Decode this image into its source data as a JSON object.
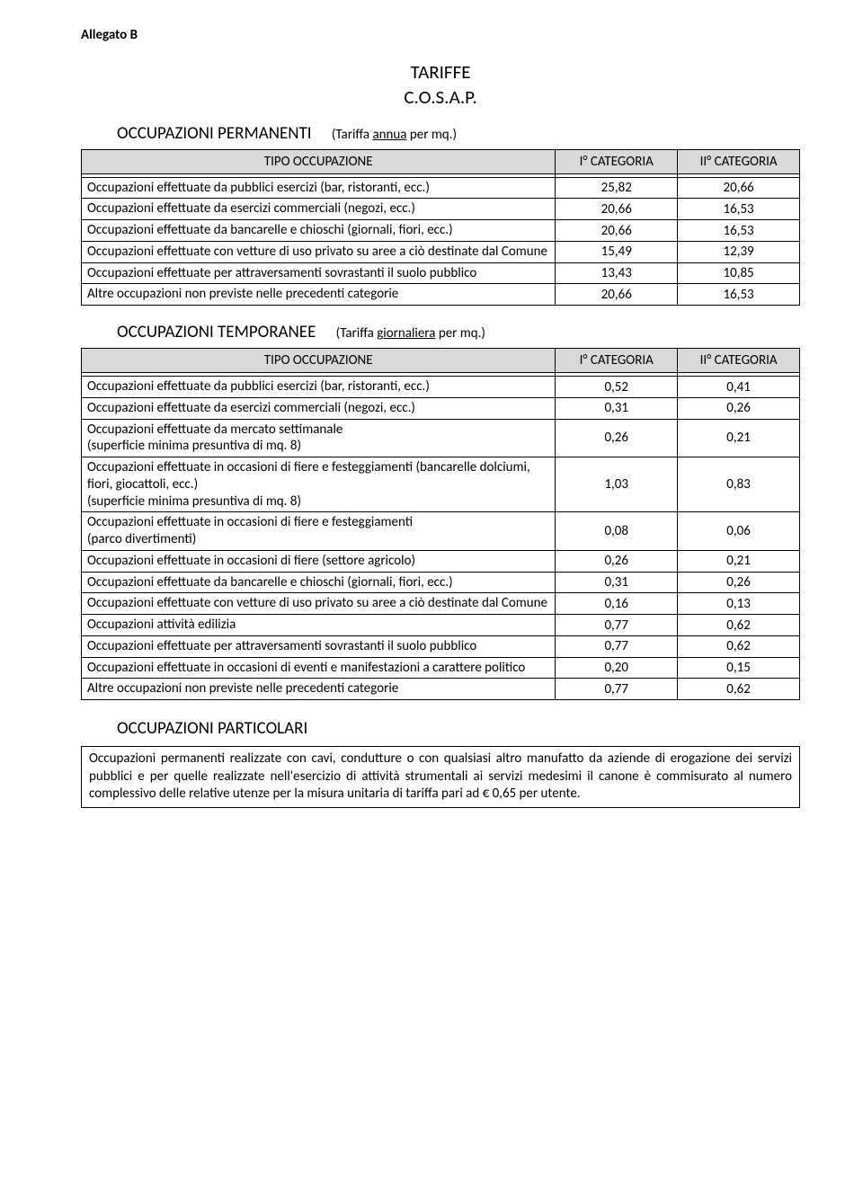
{
  "allegato": "Allegato B",
  "title1": "TARIFFE",
  "title2": "C.O.S.A.P.",
  "section1": {
    "label": "OCCUPAZIONI PERMANENTI",
    "tariffa_prefix": "(Tariffa ",
    "tariffa_underline": "annua",
    "tariffa_suffix": " per mq.)",
    "col1": "TIPO OCCUPAZIONE",
    "col2": "I° CATEGORIA",
    "col3": "II° CATEGORIA",
    "rows": [
      {
        "label": "Occupazioni effettuate da pubblici esercizi (bar, ristoranti, ecc.)",
        "c1": "25,82",
        "c2": "20,66"
      },
      {
        "label": "Occupazioni effettuate da esercizi commerciali (negozi, ecc.)",
        "c1": "20,66",
        "c2": "16,53"
      },
      {
        "label": "Occupazioni effettuate da bancarelle e chioschi (giornali, fiori, ecc.)",
        "c1": "20,66",
        "c2": "16,53"
      },
      {
        "label": "Occupazioni effettuate con vetture di uso privato su aree a ciò destinate dal Comune",
        "c1": "15,49",
        "c2": "12,39"
      },
      {
        "label": "Occupazioni effettuate per attraversamenti sovrastanti il suolo pubblico",
        "c1": "13,43",
        "c2": "10,85"
      },
      {
        "label": "Altre occupazioni non previste nelle precedenti categorie",
        "c1": "20,66",
        "c2": "16,53"
      }
    ]
  },
  "section2": {
    "label": "OCCUPAZIONI TEMPORANEE",
    "tariffa_prefix": "(Tariffa ",
    "tariffa_underline": "giornaliera",
    "tariffa_suffix": " per mq.)",
    "col1": "TIPO OCCUPAZIONE",
    "col2": "I° CATEGORIA",
    "col3": "II° CATEGORIA",
    "rows": [
      {
        "label": "Occupazioni effettuate da pubblici esercizi (bar, ristoranti, ecc.)",
        "c1": "0,52",
        "c2": "0,41"
      },
      {
        "label": "Occupazioni effettuate da esercizi commerciali (negozi, ecc.)",
        "c1": "0,31",
        "c2": "0,26"
      },
      {
        "label": "Occupazioni effettuate da mercato settimanale\n(superficie minima presuntiva di mq. 8)",
        "c1": "0,26",
        "c2": "0,21"
      },
      {
        "label": "Occupazioni effettuate in occasioni di fiere e festeggiamenti (bancarelle dolciumi, fiori, giocattoli, ecc.)\n(superficie minima presuntiva di mq. 8)",
        "c1": "1,03",
        "c2": "0,83"
      },
      {
        "label": "Occupazioni effettuate in occasioni di fiere e festeggiamenti\n(parco divertimenti)",
        "c1": "0,08",
        "c2": "0,06"
      },
      {
        "label": "Occupazioni effettuate in occasioni di fiere (settore agricolo)",
        "c1": "0,26",
        "c2": "0,21"
      },
      {
        "label": "Occupazioni effettuate da bancarelle e chioschi (giornali, fiori, ecc.)",
        "c1": "0,31",
        "c2": "0,26"
      },
      {
        "label": "Occupazioni effettuate con vetture di uso privato su aree a ciò destinate dal Comune",
        "c1": "0,16",
        "c2": "0,13"
      },
      {
        "label": "Occupazioni attività edilizia",
        "c1": "0,77",
        "c2": "0,62"
      },
      {
        "label": "Occupazioni effettuate per attraversamenti sovrastanti il suolo pubblico",
        "c1": "0,77",
        "c2": "0,62"
      },
      {
        "label": "Occupazioni effettuate in occasioni di eventi e manifestazioni a carattere politico",
        "c1": "0,20",
        "c2": "0,15"
      },
      {
        "label": "Altre occupazioni non previste nelle precedenti categorie",
        "c1": "0,77",
        "c2": "0,62"
      }
    ]
  },
  "section3": {
    "label": "OCCUPAZIONI PARTICOLARI",
    "note": "Occupazioni permanenti realizzate con cavi, condutture o con qualsiasi altro manufatto da aziende di erogazione dei servizi pubblici e per quelle realizzate nell'esercizio di attività strumentali ai servizi medesimi il canone è commisurato al numero complessivo delle relative utenze per la misura unitaria di tariffa pari ad € 0,65 per utente."
  }
}
